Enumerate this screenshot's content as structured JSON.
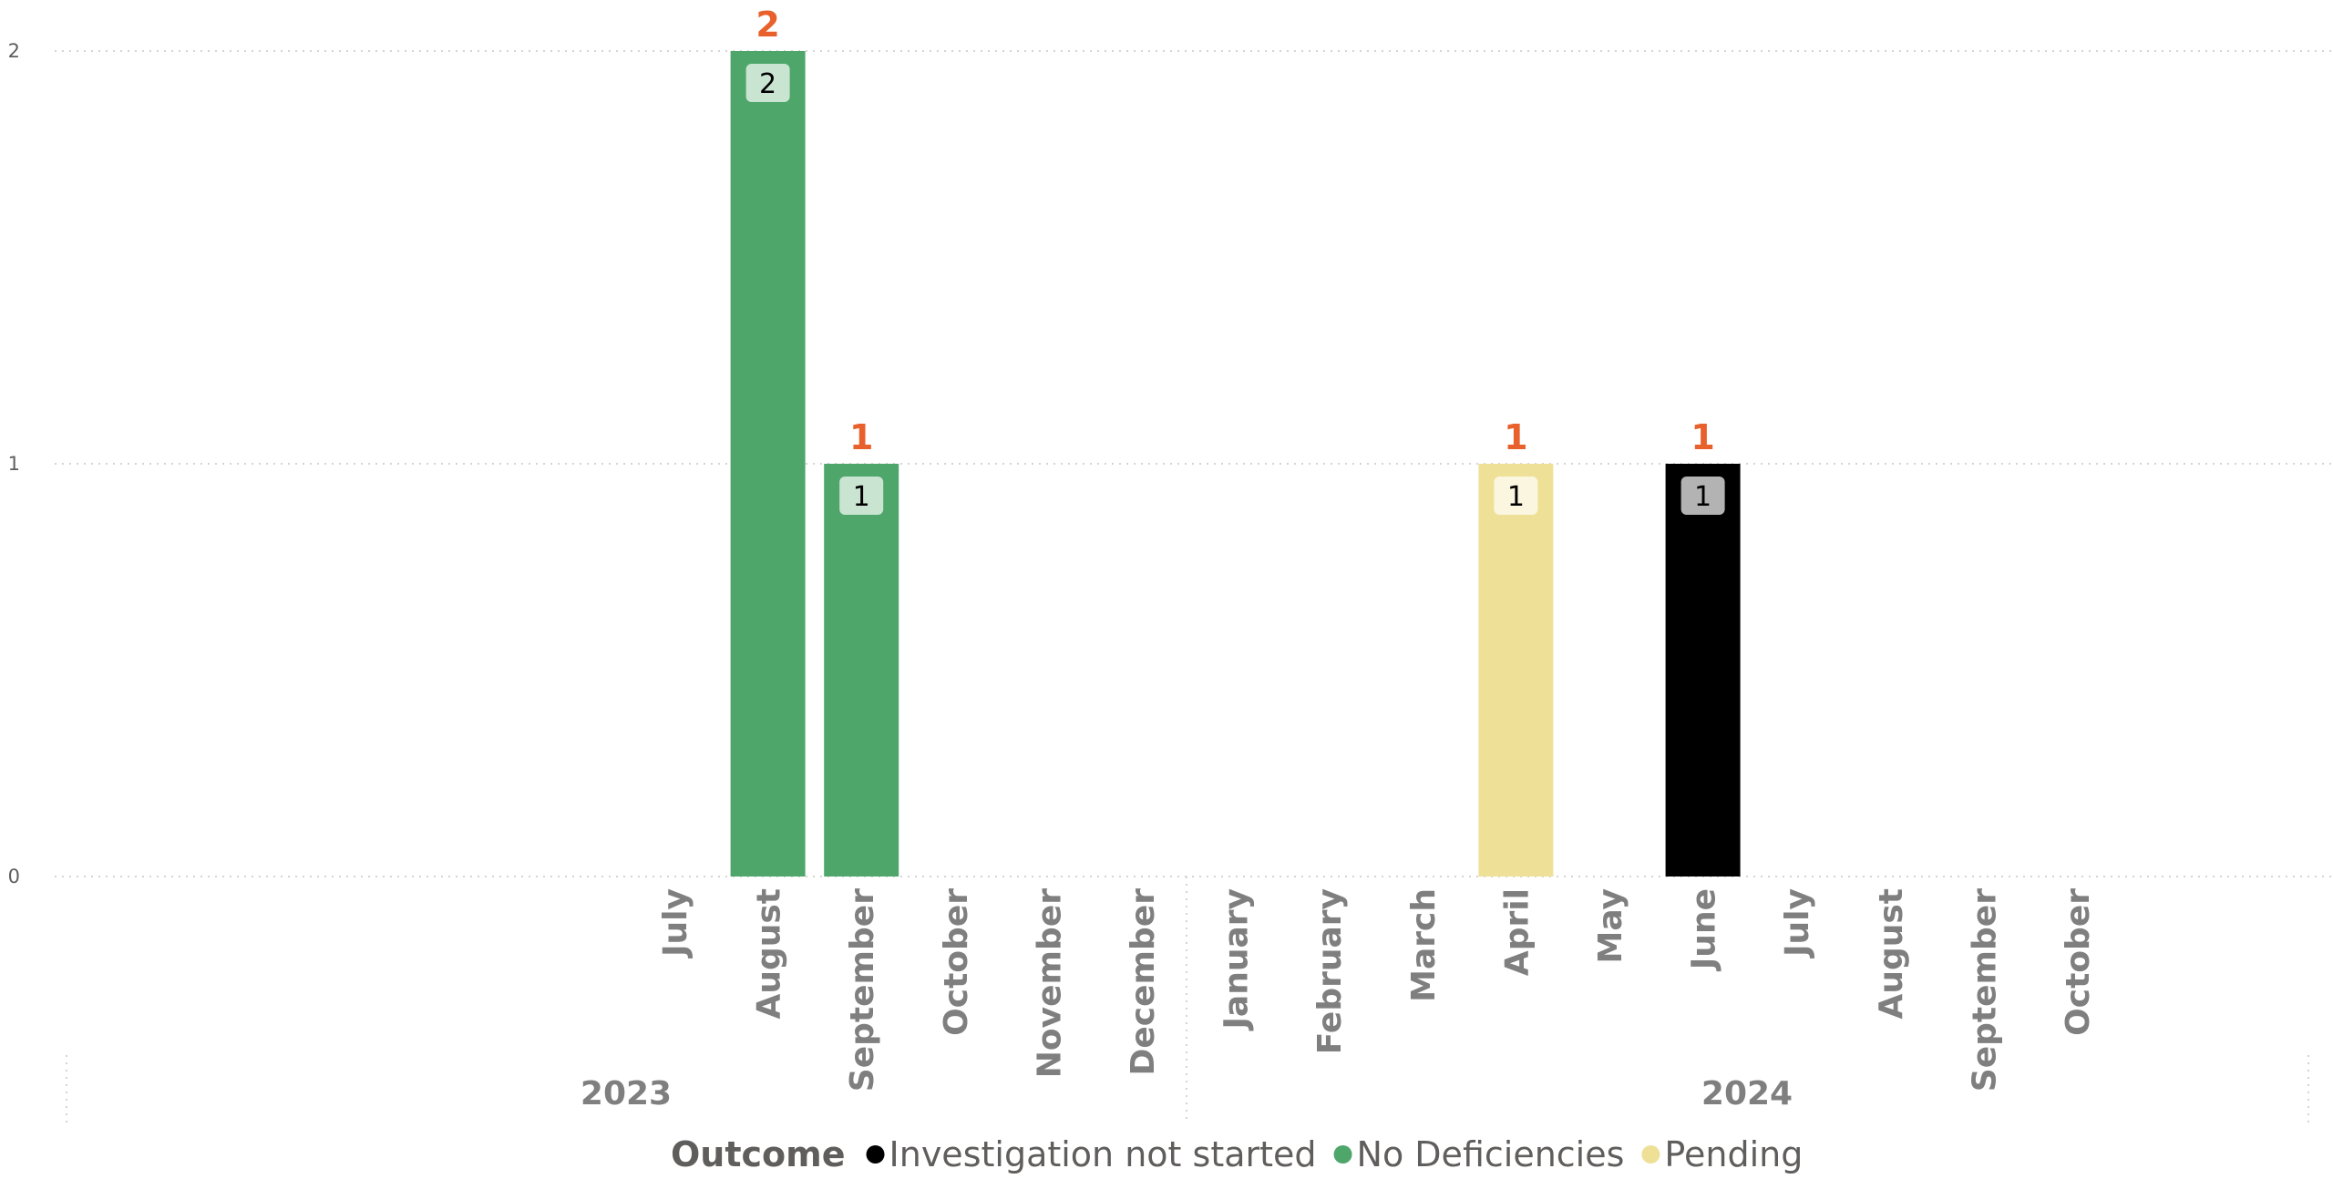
{
  "chart_data": {
    "type": "bar",
    "stacked": true,
    "title": "",
    "xlabel": "",
    "ylabel": "",
    "ylim": [
      0,
      2
    ],
    "yticks": [
      0,
      1,
      2
    ],
    "grid": true,
    "legend": {
      "title": "Outcome",
      "placement": "bottom-center"
    },
    "colors": {
      "Investigation not started": "#000000",
      "No Deficiencies": "#4EA66A",
      "Pending": "#EFE097",
      "total_label": "#E8612C"
    },
    "year_groups": [
      {
        "year": "2023",
        "first_index": 0,
        "last_index": 5
      },
      {
        "year": "2024",
        "first_index": 6,
        "last_index": 15
      }
    ],
    "categories": [
      "July",
      "August",
      "September",
      "October",
      "November",
      "December",
      "January",
      "February",
      "March",
      "April",
      "May",
      "June",
      "July",
      "August",
      "September",
      "October"
    ],
    "series": [
      {
        "name": "Investigation not started",
        "values": [
          0,
          0,
          0,
          0,
          0,
          0,
          0,
          0,
          0,
          0,
          0,
          1,
          0,
          0,
          0,
          0
        ]
      },
      {
        "name": "No Deficiencies",
        "values": [
          0,
          2,
          1,
          0,
          0,
          0,
          0,
          0,
          0,
          0,
          0,
          0,
          0,
          0,
          0,
          0
        ]
      },
      {
        "name": "Pending",
        "values": [
          0,
          0,
          0,
          0,
          0,
          0,
          0,
          0,
          0,
          1,
          0,
          0,
          0,
          0,
          0,
          0
        ]
      }
    ],
    "totals": [
      0,
      2,
      1,
      0,
      0,
      0,
      0,
      0,
      0,
      1,
      0,
      1,
      0,
      0,
      0,
      0
    ]
  }
}
